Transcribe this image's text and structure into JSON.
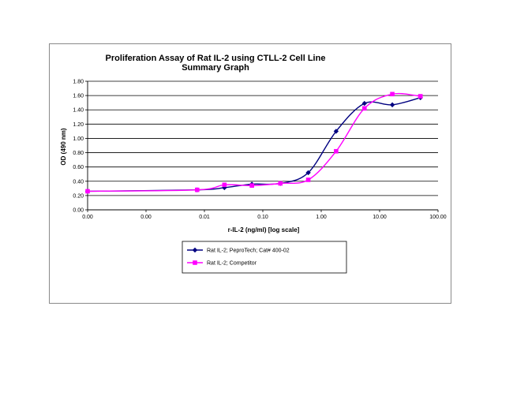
{
  "chart_data": {
    "type": "line",
    "title": "Proliferation Assay of Rat IL-2 using CTLL-2 Cell Line",
    "subtitle": "Summary Graph",
    "xlabel": "r-IL-2 (ng/ml) [log scale]",
    "ylabel": "OD (490 nm)",
    "xscale": "log",
    "xlim": [
      0.0001,
      100
    ],
    "ylim": [
      0,
      1.8
    ],
    "x_tick_labels": [
      "0.00",
      "0.00",
      "0.01",
      "0.10",
      "1.00",
      "10.00",
      "100.00"
    ],
    "y_tick_labels": [
      "0.00",
      "0.20",
      "0.40",
      "0.60",
      "0.80",
      "1.00",
      "1.20",
      "1.40",
      "1.60",
      "1.80"
    ],
    "grid": "horizontal",
    "legend_position": "bottom-center",
    "series": [
      {
        "name": "Rat IL-2; PeproTech; Cat# 400-02",
        "color": "#000080",
        "marker": "diamond",
        "x": [
          0.0001,
          0.0075,
          0.022,
          0.065,
          0.2,
          0.6,
          1.8,
          5.5,
          16.5,
          50
        ],
        "y": [
          0.26,
          0.28,
          0.31,
          0.36,
          0.37,
          0.52,
          1.1,
          1.49,
          1.47,
          1.57
        ]
      },
      {
        "name": "Rat IL-2; Competitor",
        "color": "#ff00ff",
        "marker": "square",
        "x": [
          0.0001,
          0.0075,
          0.022,
          0.065,
          0.2,
          0.6,
          1.8,
          5.5,
          16.5,
          50
        ],
        "y": [
          0.26,
          0.28,
          0.35,
          0.34,
          0.37,
          0.42,
          0.82,
          1.42,
          1.62,
          1.59
        ]
      }
    ]
  }
}
